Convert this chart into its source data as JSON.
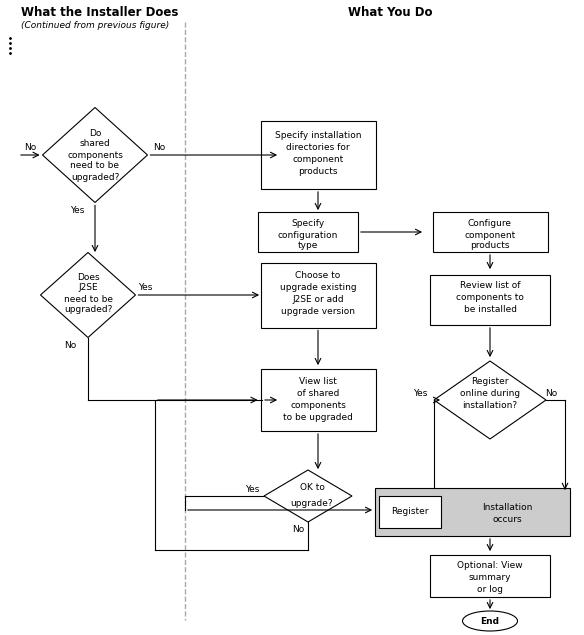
{
  "title_left": "What the Installer Does",
  "title_right": "What You Do",
  "subtitle": "(Continued from previous figure)",
  "bg_color": "#ffffff",
  "line_color": "#000000",
  "gray_fill": "#cccccc",
  "dashed_line_color": "#999999",
  "font_size": 6.5,
  "title_font_size": 8.5
}
